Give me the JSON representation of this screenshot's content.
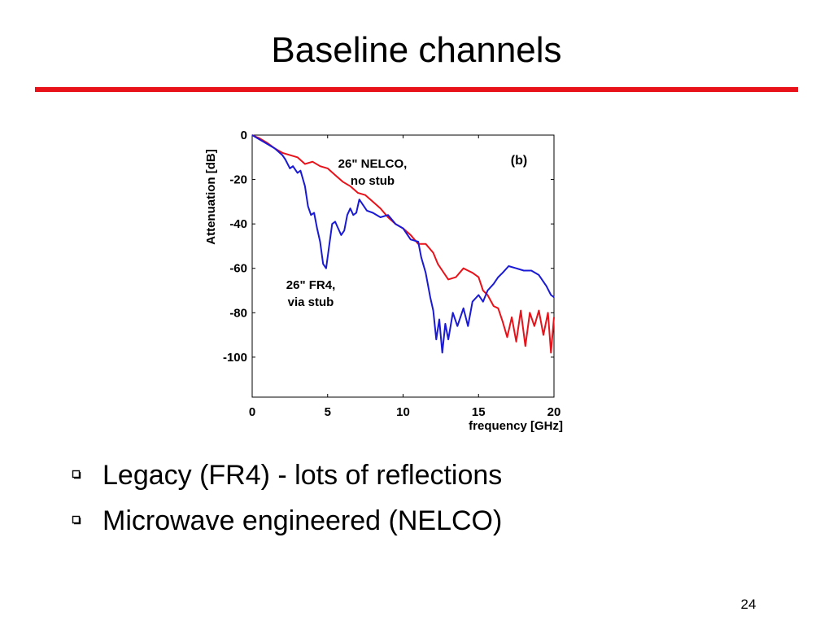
{
  "slide": {
    "title": "Baseline channels",
    "accent_color": "#e8121a",
    "bullet_icon": "hollow-square-icon",
    "bullets": [
      "Legacy (FR4)  - lots of reflections",
      "Microwave engineered (NELCO)"
    ],
    "page_number": "24"
  },
  "chart_data": {
    "type": "line",
    "title": "",
    "panel_label": "(b)",
    "xlabel": "frequency [GHz]",
    "ylabel": "Attenuation [dB]",
    "xlim": [
      0,
      20
    ],
    "ylim": [
      -118,
      0
    ],
    "xticks": [
      0,
      5,
      10,
      15,
      20
    ],
    "yticks": [
      0,
      -20,
      -40,
      -60,
      -80,
      -100
    ],
    "grid": false,
    "series": [
      {
        "color": "#e8121a",
        "annotation": [
          "26\" NELCO,",
          "no stub"
        ],
        "points": [
          [
            0,
            0
          ],
          [
            0.5,
            -1.5
          ],
          [
            1,
            -3.5
          ],
          [
            1.5,
            -6
          ],
          [
            2,
            -8
          ],
          [
            2.5,
            -9
          ],
          [
            3,
            -10
          ],
          [
            3.5,
            -13
          ],
          [
            4,
            -12
          ],
          [
            4.5,
            -14
          ],
          [
            5,
            -15
          ],
          [
            5.5,
            -18
          ],
          [
            6,
            -21
          ],
          [
            6.5,
            -23
          ],
          [
            7,
            -26
          ],
          [
            7.5,
            -27
          ],
          [
            8,
            -30
          ],
          [
            8.5,
            -33
          ],
          [
            9,
            -37
          ],
          [
            9.5,
            -40
          ],
          [
            10,
            -42
          ],
          [
            10.5,
            -45
          ],
          [
            11,
            -49
          ],
          [
            11.5,
            -49
          ],
          [
            12,
            -53
          ],
          [
            12.3,
            -58
          ],
          [
            12.6,
            -61
          ],
          [
            13,
            -65
          ],
          [
            13.5,
            -64
          ],
          [
            14,
            -60
          ],
          [
            14.3,
            -61
          ],
          [
            14.6,
            -62
          ],
          [
            15,
            -64
          ],
          [
            15.3,
            -70
          ],
          [
            15.6,
            -72
          ],
          [
            16,
            -77
          ],
          [
            16.3,
            -78
          ],
          [
            16.6,
            -84
          ],
          [
            16.9,
            -91
          ],
          [
            17.2,
            -82
          ],
          [
            17.5,
            -93
          ],
          [
            17.8,
            -79
          ],
          [
            18.1,
            -95
          ],
          [
            18.4,
            -80
          ],
          [
            18.7,
            -86
          ],
          [
            19,
            -79
          ],
          [
            19.3,
            -90
          ],
          [
            19.6,
            -80
          ],
          [
            19.8,
            -98
          ],
          [
            20,
            -82
          ]
        ]
      },
      {
        "color": "#1a1ad4",
        "annotation": [
          "26\" FR4,",
          "via stub"
        ],
        "points": [
          [
            0,
            0
          ],
          [
            0.5,
            -2
          ],
          [
            1,
            -4
          ],
          [
            1.5,
            -6
          ],
          [
            2,
            -9
          ],
          [
            2.2,
            -11
          ],
          [
            2.5,
            -15
          ],
          [
            2.7,
            -14
          ],
          [
            3,
            -17
          ],
          [
            3.2,
            -16
          ],
          [
            3.5,
            -23
          ],
          [
            3.7,
            -32
          ],
          [
            3.9,
            -36
          ],
          [
            4.1,
            -35
          ],
          [
            4.3,
            -42
          ],
          [
            4.5,
            -48
          ],
          [
            4.7,
            -58
          ],
          [
            4.9,
            -60
          ],
          [
            5.1,
            -50
          ],
          [
            5.3,
            -40
          ],
          [
            5.5,
            -39
          ],
          [
            5.7,
            -42
          ],
          [
            5.9,
            -45
          ],
          [
            6.1,
            -43
          ],
          [
            6.3,
            -36
          ],
          [
            6.5,
            -33
          ],
          [
            6.7,
            -36
          ],
          [
            6.9,
            -35
          ],
          [
            7.1,
            -29
          ],
          [
            7.3,
            -31
          ],
          [
            7.6,
            -34
          ],
          [
            8,
            -35
          ],
          [
            8.5,
            -37
          ],
          [
            9,
            -36
          ],
          [
            9.5,
            -40
          ],
          [
            10,
            -42
          ],
          [
            10.5,
            -47
          ],
          [
            11,
            -48
          ],
          [
            11.2,
            -55
          ],
          [
            11.5,
            -62
          ],
          [
            11.8,
            -73
          ],
          [
            12,
            -79
          ],
          [
            12.2,
            -92
          ],
          [
            12.4,
            -83
          ],
          [
            12.6,
            -98
          ],
          [
            12.8,
            -85
          ],
          [
            13,
            -92
          ],
          [
            13.3,
            -80
          ],
          [
            13.6,
            -86
          ],
          [
            14,
            -78
          ],
          [
            14.3,
            -86
          ],
          [
            14.6,
            -75
          ],
          [
            15,
            -72
          ],
          [
            15.3,
            -75
          ],
          [
            15.6,
            -70
          ],
          [
            16,
            -67
          ],
          [
            16.3,
            -64
          ],
          [
            16.6,
            -62
          ],
          [
            17,
            -59
          ],
          [
            17.5,
            -60
          ],
          [
            18,
            -61
          ],
          [
            18.5,
            -61
          ],
          [
            19,
            -63
          ],
          [
            19.5,
            -68
          ],
          [
            19.8,
            -72
          ],
          [
            20,
            -73
          ]
        ]
      }
    ]
  }
}
